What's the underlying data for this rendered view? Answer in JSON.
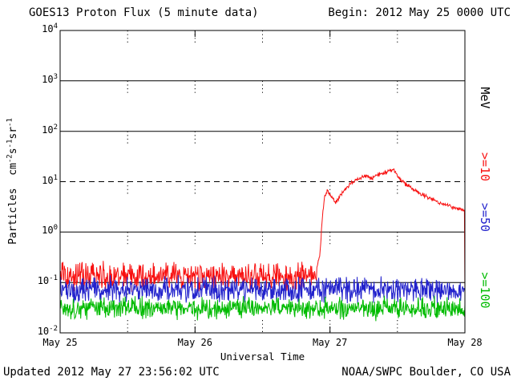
{
  "header": {
    "title": "GOES13 Proton Flux (5 minute data)",
    "begin_label": "Begin: 2012 May 25 0000 UTC"
  },
  "footer": {
    "updated": "Updated 2012 May 27 23:56:02 UTC",
    "source": "NOAA/SWPC Boulder, CO USA"
  },
  "chart_data": {
    "type": "line",
    "title": "GOES13 Proton Flux (5 minute data)",
    "x_axis": {
      "label": "Universal Time",
      "range_days": [
        0,
        3
      ],
      "tick_positions_days": [
        0,
        1,
        2,
        3
      ],
      "tick_labels": [
        "May 25",
        "May 26",
        "May 27",
        "May 28"
      ],
      "dotted_marker_positions_days": [
        0.5,
        1.0,
        1.5,
        2.0,
        2.5
      ]
    },
    "y_axis": {
      "label_segments": [
        {
          "text": "Particles  cm"
        },
        {
          "sup": "-2"
        },
        {
          "text": "s"
        },
        {
          "sup": "-1"
        },
        {
          "text": "sr"
        },
        {
          "sup": "-1"
        }
      ],
      "scale": "log10",
      "exp_range": [
        -2,
        4
      ],
      "tick_exponents": [
        4,
        3,
        2,
        1,
        0,
        -1,
        -2
      ],
      "solid_gridline_exponents": [
        3,
        2,
        0,
        -1
      ],
      "dashed_gridline_exponents": [
        1
      ]
    },
    "unit_label": "MeV",
    "sample_minutes": 5,
    "series": [
      {
        "key": "ge10",
        "name": ">=10",
        "color": "#f81010",
        "baseline_flux": 0.13,
        "baseline_noise_dex": 0.34,
        "event": {
          "noise_dex": 0.05,
          "keypoints_day_flux": [
            [
              1.9,
              0.18
            ],
            [
              1.925,
              0.35
            ],
            [
              1.945,
              2.2
            ],
            [
              1.96,
              5.2
            ],
            [
              1.985,
              6.8
            ],
            [
              2.01,
              5.2
            ],
            [
              2.04,
              3.8
            ],
            [
              2.07,
              5.0
            ],
            [
              2.1,
              6.5
            ],
            [
              2.14,
              8.5
            ],
            [
              2.18,
              10.5
            ],
            [
              2.23,
              12.0
            ],
            [
              2.27,
              13.0
            ],
            [
              2.31,
              11.5
            ],
            [
              2.35,
              13.5
            ],
            [
              2.4,
              15.0
            ],
            [
              2.44,
              16.5
            ],
            [
              2.47,
              17.5
            ],
            [
              2.5,
              13.5
            ],
            [
              2.53,
              10.5
            ],
            [
              2.57,
              8.5
            ],
            [
              2.62,
              7.0
            ],
            [
              2.67,
              5.8
            ],
            [
              2.73,
              4.8
            ],
            [
              2.79,
              4.1
            ],
            [
              2.85,
              3.5
            ],
            [
              2.91,
              3.1
            ],
            [
              2.96,
              2.8
            ],
            [
              3.0,
              2.6
            ]
          ]
        }
      },
      {
        "key": "ge50",
        "name": ">=50",
        "color": "#2222cc",
        "baseline_flux": 0.072,
        "baseline_noise_dex": 0.3
      },
      {
        "key": "ge100",
        "name": ">=100",
        "color": "#00bb00",
        "baseline_flux": 0.031,
        "baseline_noise_dex": 0.26
      }
    ]
  }
}
